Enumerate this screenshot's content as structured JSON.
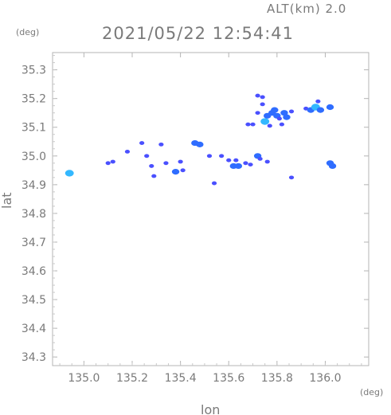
{
  "header": {
    "title": "2021/05/22 12:54:41",
    "altitude": "ALT(km) 2.0"
  },
  "chart_data": {
    "type": "scatter",
    "title": "2021/05/22 12:54:41",
    "xlabel": "lon",
    "ylabel": "lat",
    "x_unit": "(deg)",
    "y_unit": "(deg)",
    "xlim": [
      134.87,
      136.18
    ],
    "ylim": [
      34.27,
      35.36
    ],
    "xticks": [
      135.0,
      135.2,
      135.4,
      135.6,
      135.8,
      136.0
    ],
    "xtick_labels": [
      "135.0",
      "135.2",
      "135.4",
      "135.6",
      "135.8",
      "136.0"
    ],
    "yticks": [
      34.3,
      34.4,
      34.5,
      34.6,
      34.7,
      34.8,
      34.9,
      35.0,
      35.1,
      35.2,
      35.3
    ],
    "ytick_labels": [
      "34.3",
      "34.4",
      "34.5",
      "34.6",
      "34.7",
      "34.8",
      "34.9",
      "35.0",
      "35.1",
      "35.2",
      "35.3"
    ],
    "grid": false,
    "colors": {
      "weak": "#4a50ff",
      "moderate": "#2f6dff",
      "strong": "#33b8ff"
    },
    "echoes": [
      {
        "lon": 134.94,
        "lat": 34.94,
        "level": "strong"
      },
      {
        "lon": 135.1,
        "lat": 34.975,
        "level": "weak"
      },
      {
        "lon": 135.12,
        "lat": 34.98,
        "level": "weak"
      },
      {
        "lon": 135.18,
        "lat": 35.015,
        "level": "weak"
      },
      {
        "lon": 135.24,
        "lat": 35.045,
        "level": "weak"
      },
      {
        "lon": 135.26,
        "lat": 35.0,
        "level": "weak"
      },
      {
        "lon": 135.28,
        "lat": 34.965,
        "level": "weak"
      },
      {
        "lon": 135.29,
        "lat": 34.93,
        "level": "weak"
      },
      {
        "lon": 135.32,
        "lat": 35.04,
        "level": "weak"
      },
      {
        "lon": 135.34,
        "lat": 34.975,
        "level": "weak"
      },
      {
        "lon": 135.38,
        "lat": 34.945,
        "level": "moderate"
      },
      {
        "lon": 135.41,
        "lat": 34.95,
        "level": "weak"
      },
      {
        "lon": 135.4,
        "lat": 34.98,
        "level": "weak"
      },
      {
        "lon": 135.46,
        "lat": 35.045,
        "level": "moderate"
      },
      {
        "lon": 135.48,
        "lat": 35.04,
        "level": "moderate"
      },
      {
        "lon": 135.52,
        "lat": 35.0,
        "level": "weak"
      },
      {
        "lon": 135.54,
        "lat": 34.905,
        "level": "weak"
      },
      {
        "lon": 135.57,
        "lat": 35.0,
        "level": "weak"
      },
      {
        "lon": 135.6,
        "lat": 34.985,
        "level": "weak"
      },
      {
        "lon": 135.62,
        "lat": 34.965,
        "level": "moderate"
      },
      {
        "lon": 135.64,
        "lat": 34.965,
        "level": "moderate"
      },
      {
        "lon": 135.63,
        "lat": 34.985,
        "level": "weak"
      },
      {
        "lon": 135.67,
        "lat": 34.975,
        "level": "weak"
      },
      {
        "lon": 135.69,
        "lat": 34.97,
        "level": "weak"
      },
      {
        "lon": 135.72,
        "lat": 35.0,
        "level": "moderate"
      },
      {
        "lon": 135.73,
        "lat": 34.99,
        "level": "weak"
      },
      {
        "lon": 135.76,
        "lat": 34.98,
        "level": "weak"
      },
      {
        "lon": 135.86,
        "lat": 34.925,
        "level": "weak"
      },
      {
        "lon": 136.02,
        "lat": 34.975,
        "level": "moderate"
      },
      {
        "lon": 136.03,
        "lat": 34.965,
        "level": "moderate"
      },
      {
        "lon": 135.72,
        "lat": 35.21,
        "level": "weak"
      },
      {
        "lon": 135.74,
        "lat": 35.205,
        "level": "weak"
      },
      {
        "lon": 135.74,
        "lat": 35.18,
        "level": "weak"
      },
      {
        "lon": 135.72,
        "lat": 35.15,
        "level": "weak"
      },
      {
        "lon": 135.7,
        "lat": 35.11,
        "level": "weak"
      },
      {
        "lon": 135.68,
        "lat": 35.11,
        "level": "weak"
      },
      {
        "lon": 135.75,
        "lat": 35.12,
        "level": "strong"
      },
      {
        "lon": 135.76,
        "lat": 35.14,
        "level": "moderate"
      },
      {
        "lon": 135.78,
        "lat": 35.15,
        "level": "moderate"
      },
      {
        "lon": 135.79,
        "lat": 35.16,
        "level": "moderate"
      },
      {
        "lon": 135.8,
        "lat": 35.14,
        "level": "moderate"
      },
      {
        "lon": 135.81,
        "lat": 35.13,
        "level": "weak"
      },
      {
        "lon": 135.83,
        "lat": 35.15,
        "level": "moderate"
      },
      {
        "lon": 135.84,
        "lat": 35.135,
        "level": "moderate"
      },
      {
        "lon": 135.86,
        "lat": 35.155,
        "level": "weak"
      },
      {
        "lon": 135.82,
        "lat": 35.11,
        "level": "weak"
      },
      {
        "lon": 135.77,
        "lat": 35.105,
        "level": "weak"
      },
      {
        "lon": 135.92,
        "lat": 35.165,
        "level": "weak"
      },
      {
        "lon": 135.94,
        "lat": 35.16,
        "level": "moderate"
      },
      {
        "lon": 135.96,
        "lat": 35.17,
        "level": "strong"
      },
      {
        "lon": 135.97,
        "lat": 35.19,
        "level": "weak"
      },
      {
        "lon": 135.98,
        "lat": 35.16,
        "level": "moderate"
      },
      {
        "lon": 136.02,
        "lat": 35.17,
        "level": "moderate"
      }
    ]
  }
}
